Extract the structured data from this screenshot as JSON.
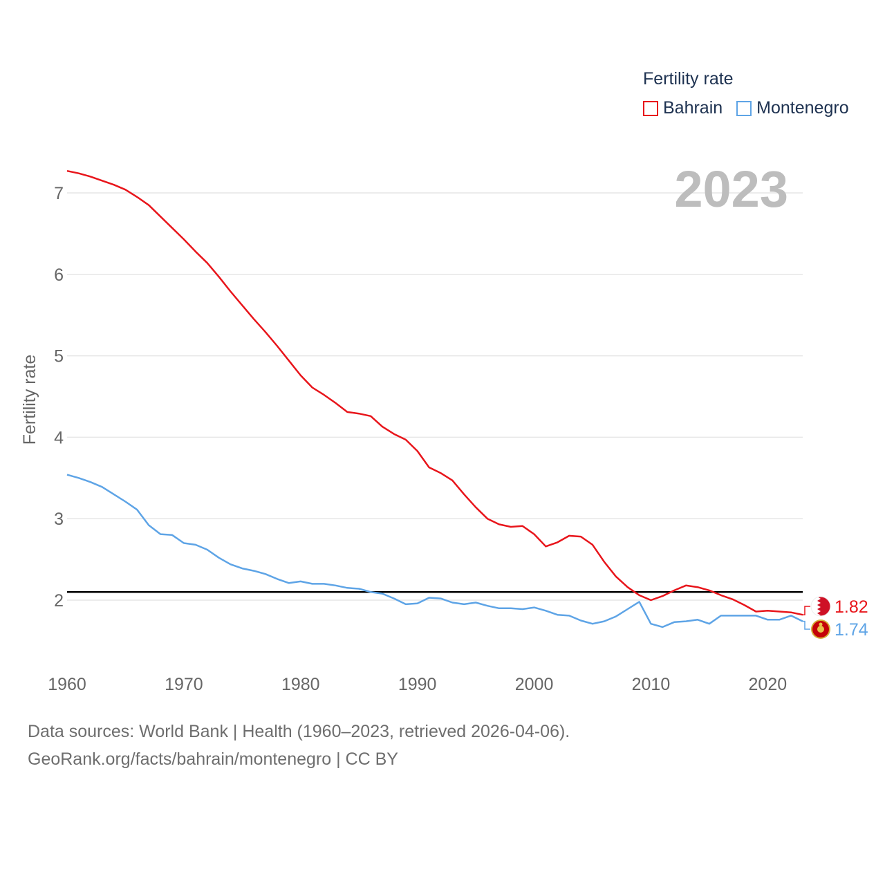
{
  "legend": {
    "title": "Fertility rate",
    "series": [
      {
        "name": "Bahrain",
        "color": "#e8151b"
      },
      {
        "name": "Montenegro",
        "color": "#5ea4e6"
      }
    ]
  },
  "year_label": "2023",
  "footer": {
    "line1": "Data sources: World Bank | Health (1960–2023, retrieved 2026-04-06).",
    "line2": "GeoRank.org/facts/bahrain/montenegro | CC BY"
  },
  "chart_data": {
    "type": "line",
    "title": "Fertility rate",
    "ylabel": "Fertility rate",
    "xlabel": "",
    "xlim": [
      1960,
      2023
    ],
    "ylim": [
      1.3,
      7.4
    ],
    "x_ticks": [
      1960,
      1970,
      1980,
      1990,
      2000,
      2010,
      2020
    ],
    "x_tick_labels": [
      "1960",
      "1970",
      "1980",
      "1990",
      "2000",
      "2010",
      "2020"
    ],
    "y_ticks": [
      2,
      3,
      4,
      5,
      6,
      7
    ],
    "y_tick_labels": [
      "2",
      "3",
      "4",
      "5",
      "6",
      "7"
    ],
    "grid": true,
    "reference_line": {
      "y": 2.1,
      "color": "#000000"
    },
    "x": [
      1960,
      1961,
      1962,
      1963,
      1964,
      1965,
      1966,
      1967,
      1968,
      1969,
      1970,
      1971,
      1972,
      1973,
      1974,
      1975,
      1976,
      1977,
      1978,
      1979,
      1980,
      1981,
      1982,
      1983,
      1984,
      1985,
      1986,
      1987,
      1988,
      1989,
      1990,
      1991,
      1992,
      1993,
      1994,
      1995,
      1996,
      1997,
      1998,
      1999,
      2000,
      2001,
      2002,
      2003,
      2004,
      2005,
      2006,
      2007,
      2008,
      2009,
      2010,
      2011,
      2012,
      2013,
      2014,
      2015,
      2016,
      2017,
      2018,
      2019,
      2020,
      2021,
      2022,
      2023
    ],
    "series": [
      {
        "name": "Bahrain",
        "color": "#e8151b",
        "end_label": "1.82",
        "flag": "bahrain-flag",
        "values": [
          7.27,
          7.24,
          7.2,
          7.15,
          7.1,
          7.04,
          6.95,
          6.85,
          6.71,
          6.57,
          6.43,
          6.28,
          6.14,
          5.97,
          5.79,
          5.62,
          5.45,
          5.29,
          5.12,
          4.94,
          4.76,
          4.61,
          4.52,
          4.42,
          4.31,
          4.29,
          4.26,
          4.13,
          4.04,
          3.97,
          3.83,
          3.63,
          3.56,
          3.47,
          3.3,
          3.14,
          3.0,
          2.93,
          2.9,
          2.91,
          2.81,
          2.66,
          2.71,
          2.79,
          2.78,
          2.68,
          2.47,
          2.29,
          2.16,
          2.06,
          2.0,
          2.05,
          2.12,
          2.18,
          2.16,
          2.12,
          2.06,
          2.01,
          1.94,
          1.86,
          1.87,
          1.86,
          1.85,
          1.82
        ]
      },
      {
        "name": "Montenegro",
        "color": "#5ea4e6",
        "end_label": "1.74",
        "flag": "montenegro-flag",
        "values": [
          3.54,
          3.5,
          3.45,
          3.39,
          3.3,
          3.21,
          3.11,
          2.92,
          2.81,
          2.8,
          2.7,
          2.68,
          2.62,
          2.52,
          2.44,
          2.39,
          2.36,
          2.32,
          2.26,
          2.21,
          2.23,
          2.2,
          2.2,
          2.18,
          2.15,
          2.14,
          2.1,
          2.08,
          2.02,
          1.95,
          1.96,
          2.03,
          2.02,
          1.97,
          1.95,
          1.97,
          1.93,
          1.9,
          1.9,
          1.89,
          1.91,
          1.87,
          1.82,
          1.81,
          1.75,
          1.71,
          1.74,
          1.8,
          1.89,
          1.98,
          1.71,
          1.67,
          1.73,
          1.74,
          1.76,
          1.71,
          1.81,
          1.81,
          1.81,
          1.81,
          1.76,
          1.76,
          1.81,
          1.74
        ]
      }
    ]
  }
}
